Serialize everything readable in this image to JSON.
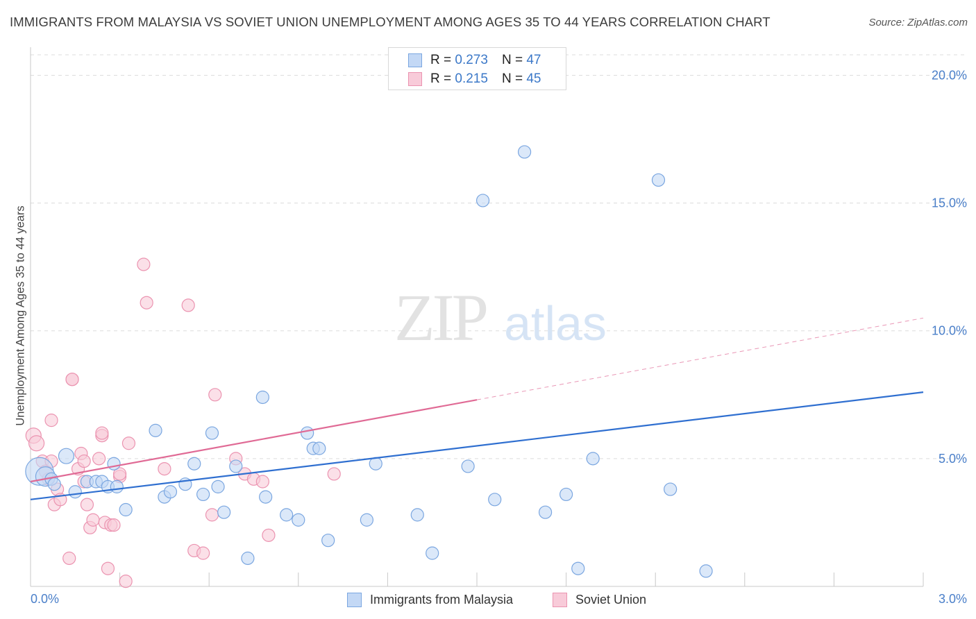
{
  "header": {
    "title": "IMMIGRANTS FROM MALAYSIA VS SOVIET UNION UNEMPLOYMENT AMONG AGES 35 TO 44 YEARS CORRELATION CHART",
    "source": "Source: ZipAtlas.com"
  },
  "watermark": {
    "zip": "ZIP",
    "atlas": "atlas"
  },
  "legend": {
    "r_label": "R =",
    "n_label": "N =",
    "series": [
      {
        "name": "Immigrants from Malaysia",
        "r": "0.273",
        "n": "47",
        "fill": "#c3d8f5",
        "stroke": "#7aa6e0"
      },
      {
        "name": "Soviet Union",
        "r": "0.215",
        "n": "45",
        "fill": "#f8cbd9",
        "stroke": "#eb93b0"
      }
    ]
  },
  "colors": {
    "blue_line": "#2f6fd0",
    "pink_line": "#e06a95",
    "tick_label": "#4a7fc9",
    "grid": "#dcdcdc"
  },
  "chart_data": {
    "type": "scatter",
    "title": "IMMIGRANTS FROM MALAYSIA VS SOVIET UNION UNEMPLOYMENT AMONG AGES 35 TO 44 YEARS CORRELATION CHART",
    "xlabel": "",
    "ylabel": "Unemployment Among Ages 35 to 44 years",
    "xlim": [
      0,
      3.0
    ],
    "ylim": [
      0,
      20.8
    ],
    "x_tick_labels": [
      "0.0%",
      "3.0%"
    ],
    "y_ticks": [
      {
        "value": 5,
        "label": "5.0%"
      },
      {
        "value": 10,
        "label": "10.0%"
      },
      {
        "value": 15,
        "label": "15.0%"
      },
      {
        "value": 20,
        "label": "20.0%"
      }
    ],
    "grid": true,
    "legend_position": "top-center",
    "series": [
      {
        "name": "Immigrants from Malaysia",
        "x": [
          0.03,
          0.05,
          0.07,
          0.08,
          0.12,
          0.15,
          0.19,
          0.22,
          0.24,
          0.26,
          0.28,
          0.29,
          0.32,
          0.42,
          0.45,
          0.47,
          0.52,
          0.55,
          0.58,
          0.61,
          0.63,
          0.65,
          0.69,
          0.73,
          0.78,
          0.79,
          0.86,
          0.9,
          0.93,
          0.95,
          0.97,
          1.0,
          1.13,
          1.16,
          1.3,
          1.35,
          1.47,
          1.52,
          1.56,
          1.66,
          1.73,
          1.8,
          1.84,
          1.89,
          2.11,
          2.15,
          2.27
        ],
        "y": [
          4.5,
          4.3,
          4.2,
          4.0,
          5.1,
          3.7,
          4.1,
          4.1,
          4.1,
          3.9,
          4.8,
          3.9,
          3.0,
          6.1,
          3.5,
          3.7,
          4.0,
          4.8,
          3.6,
          6.0,
          3.9,
          2.9,
          4.7,
          1.1,
          7.4,
          3.5,
          2.8,
          2.6,
          6.0,
          5.4,
          5.4,
          1.8,
          2.6,
          4.8,
          2.8,
          1.3,
          4.7,
          15.1,
          3.4,
          17.0,
          2.9,
          3.6,
          0.7,
          5.0,
          15.9,
          3.8,
          0.6
        ],
        "sizes": [
          20,
          14,
          9,
          9,
          11,
          9,
          9,
          9,
          9,
          9,
          9,
          9,
          9,
          9,
          9,
          9,
          9,
          9,
          9,
          9,
          9,
          9,
          9,
          9,
          9,
          9,
          9,
          9,
          9,
          9,
          9,
          9,
          9,
          9,
          9,
          9,
          9,
          9,
          9,
          9,
          9,
          9,
          9,
          9,
          9,
          9,
          9
        ],
        "trend": {
          "x": [
            0,
            3.0
          ],
          "y": [
            3.4,
            7.6
          ]
        }
      },
      {
        "name": "Soviet Union",
        "x": [
          0.01,
          0.02,
          0.04,
          0.05,
          0.06,
          0.07,
          0.07,
          0.08,
          0.09,
          0.1,
          0.13,
          0.14,
          0.14,
          0.16,
          0.17,
          0.18,
          0.18,
          0.19,
          0.2,
          0.21,
          0.23,
          0.24,
          0.24,
          0.25,
          0.26,
          0.27,
          0.28,
          0.3,
          0.3,
          0.32,
          0.33,
          0.38,
          0.39,
          0.45,
          0.53,
          0.55,
          0.58,
          0.61,
          0.62,
          0.69,
          0.72,
          0.75,
          0.78,
          0.8,
          1.02
        ],
        "y": [
          5.9,
          5.6,
          4.9,
          4.5,
          4.2,
          4.9,
          6.5,
          3.2,
          3.8,
          3.4,
          1.1,
          8.1,
          8.1,
          4.6,
          5.2,
          4.1,
          4.9,
          3.2,
          2.3,
          2.6,
          5.0,
          5.9,
          6.0,
          2.5,
          0.7,
          2.4,
          2.4,
          4.3,
          4.4,
          0.2,
          5.6,
          12.6,
          11.1,
          4.6,
          11.0,
          1.4,
          1.3,
          2.8,
          7.5,
          5.0,
          4.4,
          4.2,
          4.1,
          2.0,
          4.4
        ],
        "sizes": [
          11,
          11,
          9,
          9,
          9,
          9,
          9,
          9,
          9,
          9,
          9,
          9,
          9,
          9,
          9,
          9,
          9,
          9,
          9,
          9,
          9,
          9,
          9,
          9,
          9,
          9,
          9,
          9,
          9,
          9,
          9,
          9,
          9,
          9,
          9,
          9,
          9,
          9,
          9,
          9,
          9,
          9,
          9,
          9,
          9
        ],
        "trend": {
          "x": [
            0,
            1.5
          ],
          "y": [
            4.1,
            7.3
          ],
          "extended": {
            "x": [
              1.5,
              3.0
            ],
            "y": [
              7.3,
              10.5
            ]
          }
        }
      }
    ]
  }
}
